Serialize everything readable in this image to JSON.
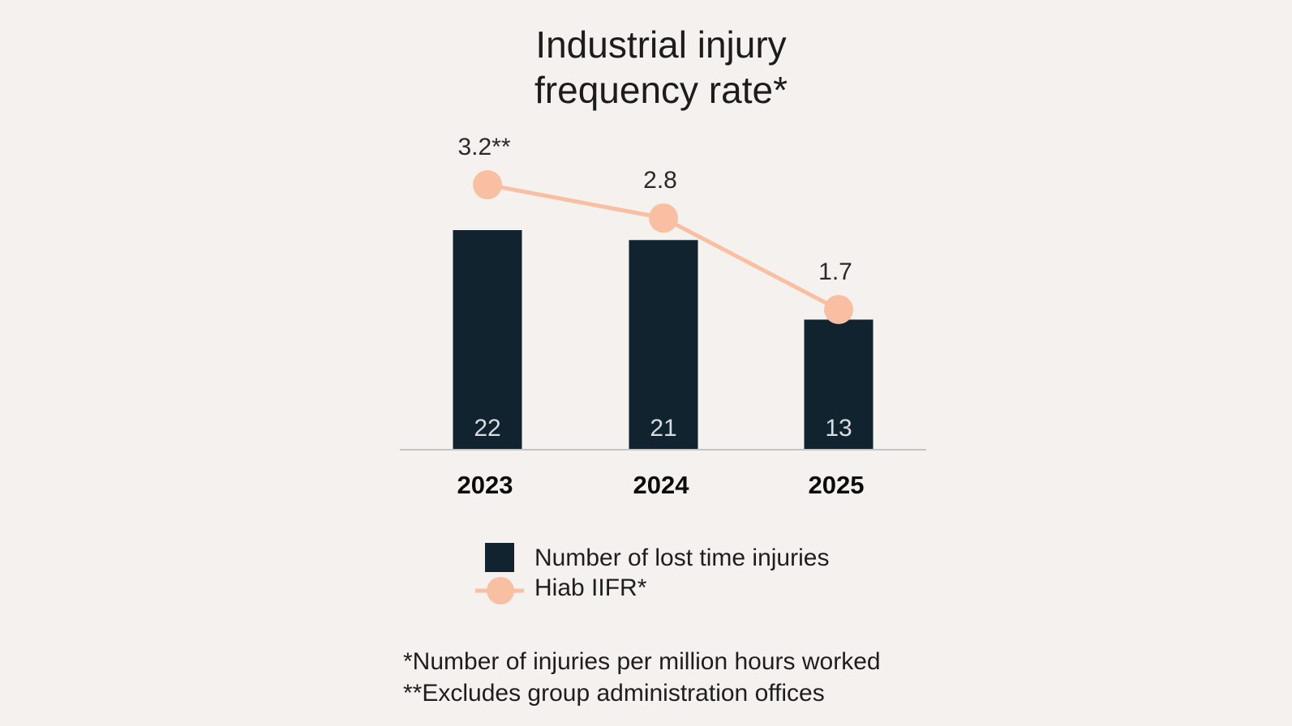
{
  "chart_data": {
    "type": "bar",
    "title_lines": [
      "Industrial injury",
      "frequency rate*"
    ],
    "categories": [
      "2023",
      "2024",
      "2025"
    ],
    "series": [
      {
        "name": "Number of lost time injuries",
        "kind": "bar",
        "color": "#10232f",
        "values": [
          22,
          21,
          13
        ],
        "labels": [
          "22",
          "21",
          "13"
        ]
      },
      {
        "name": "Hiab IIFR*",
        "kind": "line",
        "color": "#f9bfa2",
        "values": [
          3.2,
          2.8,
          1.7
        ],
        "labels": [
          "3.2**",
          "2.8",
          "1.7"
        ]
      }
    ],
    "bar_ylim": [
      0,
      22
    ],
    "line_ylim": [
      1.7,
      3.2
    ],
    "xlabel": "",
    "ylabel": "",
    "grid": false,
    "legend": {
      "position": "bottom",
      "entries": [
        "Number of lost time injuries",
        "Hiab IIFR*"
      ]
    },
    "footnotes": [
      "*Number of injuries per million hours worked",
      "**Excludes group administration offices"
    ]
  }
}
